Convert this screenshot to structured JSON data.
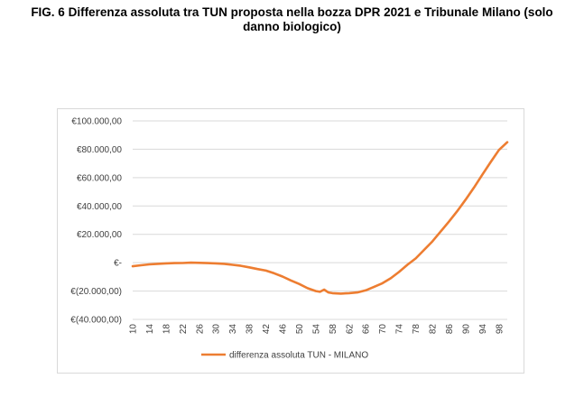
{
  "figure": {
    "title_line1": "FIG. 6 Differenza assoluta tra TUN proposta nella bozza DPR 2021 e Tribunale Milano (solo",
    "title_line2": "danno biologico)"
  },
  "chart_data": {
    "type": "line",
    "title": "",
    "xlabel": "",
    "ylabel": "",
    "ylim": [
      -40000,
      100000
    ],
    "yticks": [
      100000,
      80000,
      60000,
      40000,
      20000,
      0,
      -20000,
      -40000
    ],
    "ytick_labels": [
      "€100.000,00",
      "€80.000,00",
      "€60.000,00",
      "€40.000,00",
      "€20.000,00",
      "€-",
      "€(20.000,00)",
      "€(40.000,00)"
    ],
    "xlim": [
      10,
      100
    ],
    "xtick_labels": [
      "10",
      "14",
      "18",
      "22",
      "26",
      "30",
      "34",
      "38",
      "42",
      "46",
      "50",
      "54",
      "58",
      "62",
      "66",
      "70",
      "74",
      "78",
      "82",
      "86",
      "90",
      "94",
      "98"
    ],
    "grid": true,
    "legend": "bottom",
    "series": [
      {
        "name": "differenza assoluta TUN - MILANO",
        "color": "#ed7d31",
        "x": [
          10,
          12,
          14,
          16,
          18,
          20,
          22,
          24,
          26,
          28,
          30,
          32,
          34,
          36,
          38,
          40,
          42,
          44,
          46,
          48,
          50,
          52,
          54,
          55,
          56,
          57,
          58,
          60,
          62,
          64,
          66,
          68,
          70,
          72,
          74,
          76,
          78,
          80,
          82,
          84,
          86,
          88,
          90,
          92,
          94,
          96,
          98,
          100
        ],
        "y": [
          -2500,
          -1800,
          -1200,
          -800,
          -500,
          -300,
          -200,
          0,
          -100,
          -300,
          -500,
          -800,
          -1500,
          -2200,
          -3300,
          -4500,
          -5600,
          -7500,
          -9800,
          -12500,
          -15000,
          -18000,
          -20000,
          -20500,
          -19000,
          -21000,
          -21500,
          -21800,
          -21500,
          -21000,
          -19500,
          -17000,
          -14500,
          -11000,
          -6500,
          -1500,
          3000,
          9000,
          15000,
          22000,
          29000,
          36500,
          44500,
          53000,
          62000,
          71000,
          79500,
          85000
        ]
      }
    ]
  }
}
